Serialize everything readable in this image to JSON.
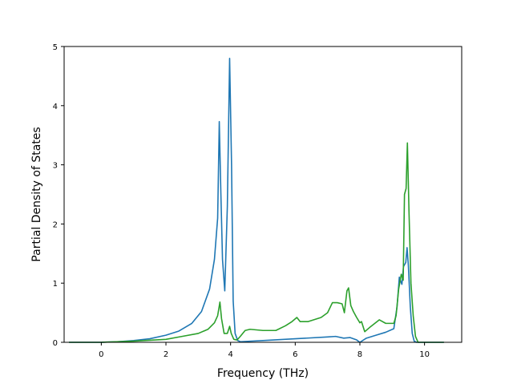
{
  "chart_data": {
    "type": "line",
    "title": "",
    "xlabel": "Frequency (THz)",
    "ylabel": "Partial Density of States",
    "xlim": [
      -1.15,
      11.15
    ],
    "ylim": [
      0,
      5.0
    ],
    "xticks": [
      0,
      2,
      4,
      6,
      8,
      10
    ],
    "yticks": [
      0,
      1,
      2,
      3,
      4,
      5
    ],
    "grid": false,
    "legend": "none",
    "series": [
      {
        "color": "#1f77b4",
        "x": [
          -1.0,
          0.0,
          0.5,
          1.0,
          1.5,
          2.0,
          2.4,
          2.8,
          3.1,
          3.35,
          3.5,
          3.6,
          3.65,
          3.7,
          3.75,
          3.82,
          3.9,
          3.97,
          4.03,
          4.08,
          4.14,
          4.22,
          4.3,
          5.0,
          6.0,
          7.0,
          7.25,
          7.5,
          7.7,
          7.9,
          8.0,
          8.2,
          8.5,
          8.8,
          9.05,
          9.15,
          9.22,
          9.3,
          9.35,
          9.42,
          9.46,
          9.5,
          9.56,
          9.62,
          9.68,
          9.75,
          10.0,
          10.6
        ],
        "y": [
          0.0,
          0.0,
          0.01,
          0.03,
          0.06,
          0.12,
          0.19,
          0.32,
          0.52,
          0.9,
          1.4,
          2.1,
          3.73,
          2.5,
          1.4,
          0.87,
          2.3,
          4.8,
          3.0,
          0.7,
          0.15,
          0.03,
          0.01,
          0.03,
          0.06,
          0.09,
          0.1,
          0.07,
          0.08,
          0.04,
          0.0,
          0.07,
          0.12,
          0.17,
          0.23,
          0.6,
          1.1,
          0.98,
          1.28,
          1.35,
          1.6,
          1.3,
          0.6,
          0.15,
          0.02,
          0.0,
          0.0,
          0.0
        ]
      },
      {
        "color": "#2ca02c",
        "x": [
          -1.0,
          0.0,
          1.0,
          2.0,
          2.5,
          3.0,
          3.3,
          3.5,
          3.6,
          3.67,
          3.72,
          3.8,
          3.9,
          3.97,
          4.02,
          4.1,
          4.2,
          4.3,
          4.45,
          4.6,
          5.0,
          5.4,
          5.7,
          5.9,
          6.05,
          6.15,
          6.4,
          6.8,
          7.0,
          7.15,
          7.3,
          7.45,
          7.52,
          7.6,
          7.65,
          7.72,
          7.8,
          7.9,
          8.0,
          8.05,
          8.15,
          8.3,
          8.6,
          8.8,
          9.05,
          9.12,
          9.2,
          9.28,
          9.34,
          9.38,
          9.43,
          9.47,
          9.52,
          9.58,
          9.65,
          9.72,
          9.8,
          10.0,
          10.6
        ],
        "y": [
          0.0,
          0.0,
          0.02,
          0.05,
          0.1,
          0.15,
          0.22,
          0.33,
          0.45,
          0.68,
          0.4,
          0.15,
          0.15,
          0.27,
          0.15,
          0.05,
          0.04,
          0.1,
          0.2,
          0.22,
          0.2,
          0.2,
          0.28,
          0.35,
          0.42,
          0.35,
          0.35,
          0.42,
          0.5,
          0.67,
          0.67,
          0.65,
          0.5,
          0.87,
          0.92,
          0.62,
          0.52,
          0.42,
          0.33,
          0.35,
          0.18,
          0.25,
          0.38,
          0.32,
          0.32,
          0.45,
          0.9,
          1.15,
          1.05,
          2.5,
          2.6,
          3.37,
          2.2,
          1.0,
          0.45,
          0.1,
          0.0,
          0.0,
          0.0
        ]
      }
    ]
  }
}
